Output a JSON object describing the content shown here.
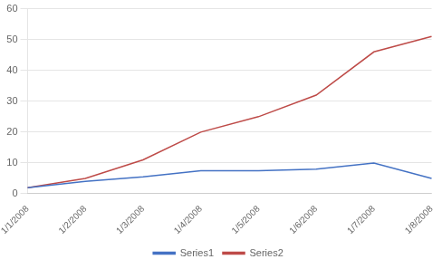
{
  "chart_data": {
    "type": "line",
    "categories": [
      "1/1/2008",
      "1/2/2008",
      "1/3/2008",
      "1/4/2008",
      "1/5/2008",
      "1/6/2008",
      "1/7/2008",
      "1/8/2008"
    ],
    "series": [
      {
        "name": "Series1",
        "color": "#4472C4",
        "values": [
          2,
          4,
          5.5,
          7.5,
          7.5,
          8,
          10,
          5
        ]
      },
      {
        "name": "Series2",
        "color": "#BE4B48",
        "values": [
          2,
          5,
          11,
          20,
          25,
          32,
          46,
          51
        ]
      }
    ],
    "ylim": [
      0,
      60
    ],
    "yticks": [
      0,
      10,
      20,
      30,
      40,
      50,
      60
    ],
    "grid": true,
    "legend": "bottom"
  }
}
